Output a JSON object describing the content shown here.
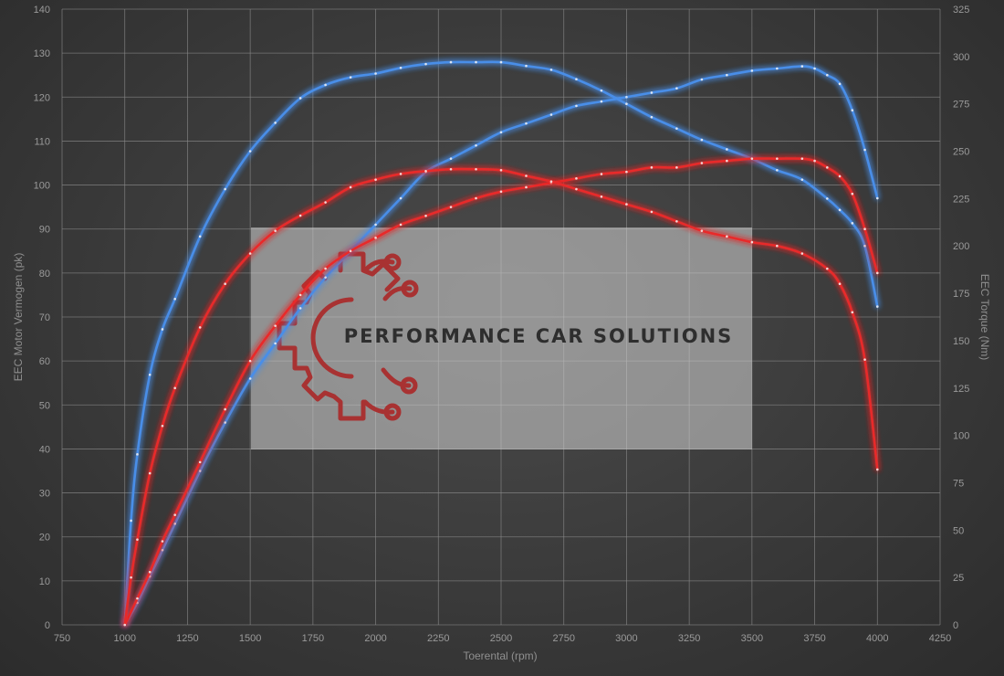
{
  "chart_data": {
    "type": "line",
    "xlabel": "Toerental (rpm)",
    "ylabel_left": "EEC Motor Vermogen (pk)",
    "ylabel_right": "EEC Torque (Nm)",
    "xlim": [
      750,
      4250
    ],
    "ylim_left": [
      0,
      140
    ],
    "ylim_right": [
      0,
      325
    ],
    "x_ticks": [
      750,
      1000,
      1250,
      1500,
      1750,
      2000,
      2250,
      2500,
      2750,
      3000,
      3250,
      3500,
      3750,
      4000,
      4250
    ],
    "y_left_ticks": [
      0,
      10,
      20,
      30,
      40,
      50,
      60,
      70,
      80,
      90,
      100,
      110,
      120,
      130,
      140
    ],
    "y_right_ticks": [
      0,
      25,
      50,
      75,
      100,
      125,
      150,
      175,
      200,
      225,
      250,
      275,
      300,
      325
    ],
    "grid": true,
    "series": [
      {
        "color": "#4a8ee8",
        "axis": "left",
        "x": [
          1000,
          1050,
          1100,
          1150,
          1200,
          1300,
          1400,
          1500,
          1600,
          1700,
          1800,
          1900,
          2000,
          2100,
          2200,
          2300,
          2400,
          2500,
          2600,
          2700,
          2800,
          2900,
          3000,
          3100,
          3200,
          3300,
          3400,
          3500,
          3600,
          3700,
          3750,
          3800,
          3850,
          3900,
          3950,
          4000
        ],
        "y": [
          0,
          5,
          11,
          17,
          23,
          35,
          46,
          56,
          64,
          72,
          79,
          85,
          91,
          97,
          103,
          106,
          109,
          112,
          114,
          116,
          118,
          119,
          120,
          121,
          122,
          124,
          125,
          126,
          126.5,
          127,
          126.5,
          125,
          123,
          117,
          108,
          97
        ]
      },
      {
        "color": "#4a8ee8",
        "axis": "right",
        "x": [
          1000,
          1025,
          1050,
          1100,
          1150,
          1200,
          1300,
          1400,
          1500,
          1600,
          1700,
          1800,
          1900,
          2000,
          2100,
          2200,
          2300,
          2400,
          2500,
          2600,
          2700,
          2800,
          2900,
          3000,
          3100,
          3200,
          3300,
          3400,
          3500,
          3600,
          3700,
          3800,
          3850,
          3900,
          3950,
          4000
        ],
        "y": [
          0,
          55,
          90,
          132,
          156,
          172,
          205,
          230,
          250,
          265,
          278,
          285,
          289,
          291,
          294,
          296,
          297,
          297,
          297,
          295,
          293,
          288,
          282,
          275,
          268,
          262,
          256,
          251,
          246,
          240,
          235,
          225,
          219,
          212,
          200,
          168
        ]
      },
      {
        "color": "#e82a2a",
        "axis": "left",
        "x": [
          1000,
          1050,
          1100,
          1150,
          1200,
          1300,
          1400,
          1500,
          1600,
          1700,
          1800,
          1900,
          2000,
          2100,
          2200,
          2300,
          2400,
          2500,
          2600,
          2700,
          2800,
          2900,
          3000,
          3100,
          3200,
          3300,
          3400,
          3500,
          3600,
          3700,
          3750,
          3800,
          3850,
          3900,
          3950,
          4000
        ],
        "y": [
          0,
          6,
          12,
          19,
          25,
          37,
          49,
          60,
          68,
          75,
          81,
          85,
          88,
          91,
          93,
          95,
          97,
          98.5,
          99.5,
          100.5,
          101.5,
          102.5,
          103,
          104,
          104,
          105,
          105.5,
          106,
          106,
          106,
          105.5,
          104,
          102,
          98,
          90,
          80
        ]
      },
      {
        "color": "#e82a2a",
        "axis": "right",
        "x": [
          1000,
          1025,
          1050,
          1100,
          1150,
          1200,
          1300,
          1400,
          1500,
          1600,
          1700,
          1800,
          1900,
          2000,
          2100,
          2200,
          2300,
          2400,
          2500,
          2600,
          2700,
          2800,
          2900,
          3000,
          3100,
          3200,
          3300,
          3400,
          3500,
          3600,
          3700,
          3800,
          3850,
          3900,
          3950,
          4000
        ],
        "y": [
          0,
          25,
          45,
          80,
          105,
          125,
          157,
          180,
          196,
          208,
          216,
          223,
          231,
          235,
          238,
          239.5,
          240.5,
          240.5,
          240,
          237,
          234,
          230,
          226,
          222,
          218,
          213,
          208,
          205,
          202,
          200,
          196,
          188,
          180,
          165,
          140,
          82
        ]
      }
    ]
  },
  "watermark": {
    "text": "PERFORMANCE CAR SOLUTIONS",
    "icon": "gear-circuit-logo-icon",
    "box_color": "#d3d3d3",
    "logo_color": "#a83232"
  }
}
